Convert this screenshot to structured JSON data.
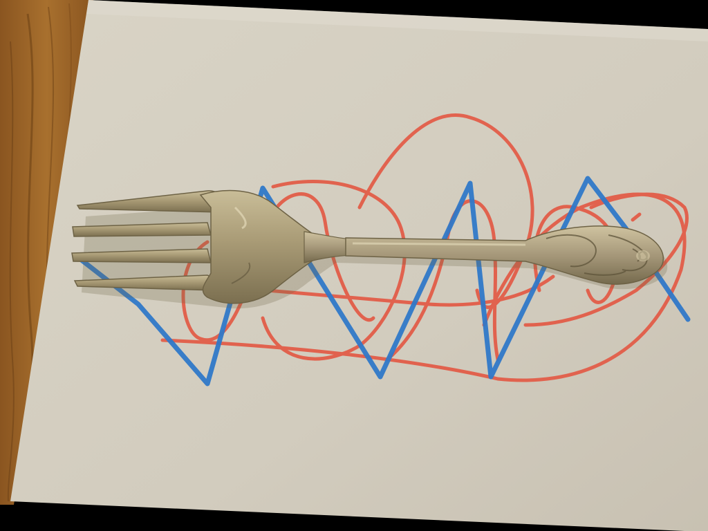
{
  "scene": {
    "subject": "fork",
    "colors": {
      "frame": "#000000",
      "table_wood": "#9a6428",
      "table_grain": "#6e4215",
      "paper": "#d6d0c2",
      "paper_shadow": "#c4bdae",
      "red_marker": "#e35a45",
      "blue_marker": "#2f78c8",
      "fork_metal": "#a89a78",
      "fork_highlight": "#d0c4a0",
      "fork_shadow": "#6d6245"
    }
  }
}
